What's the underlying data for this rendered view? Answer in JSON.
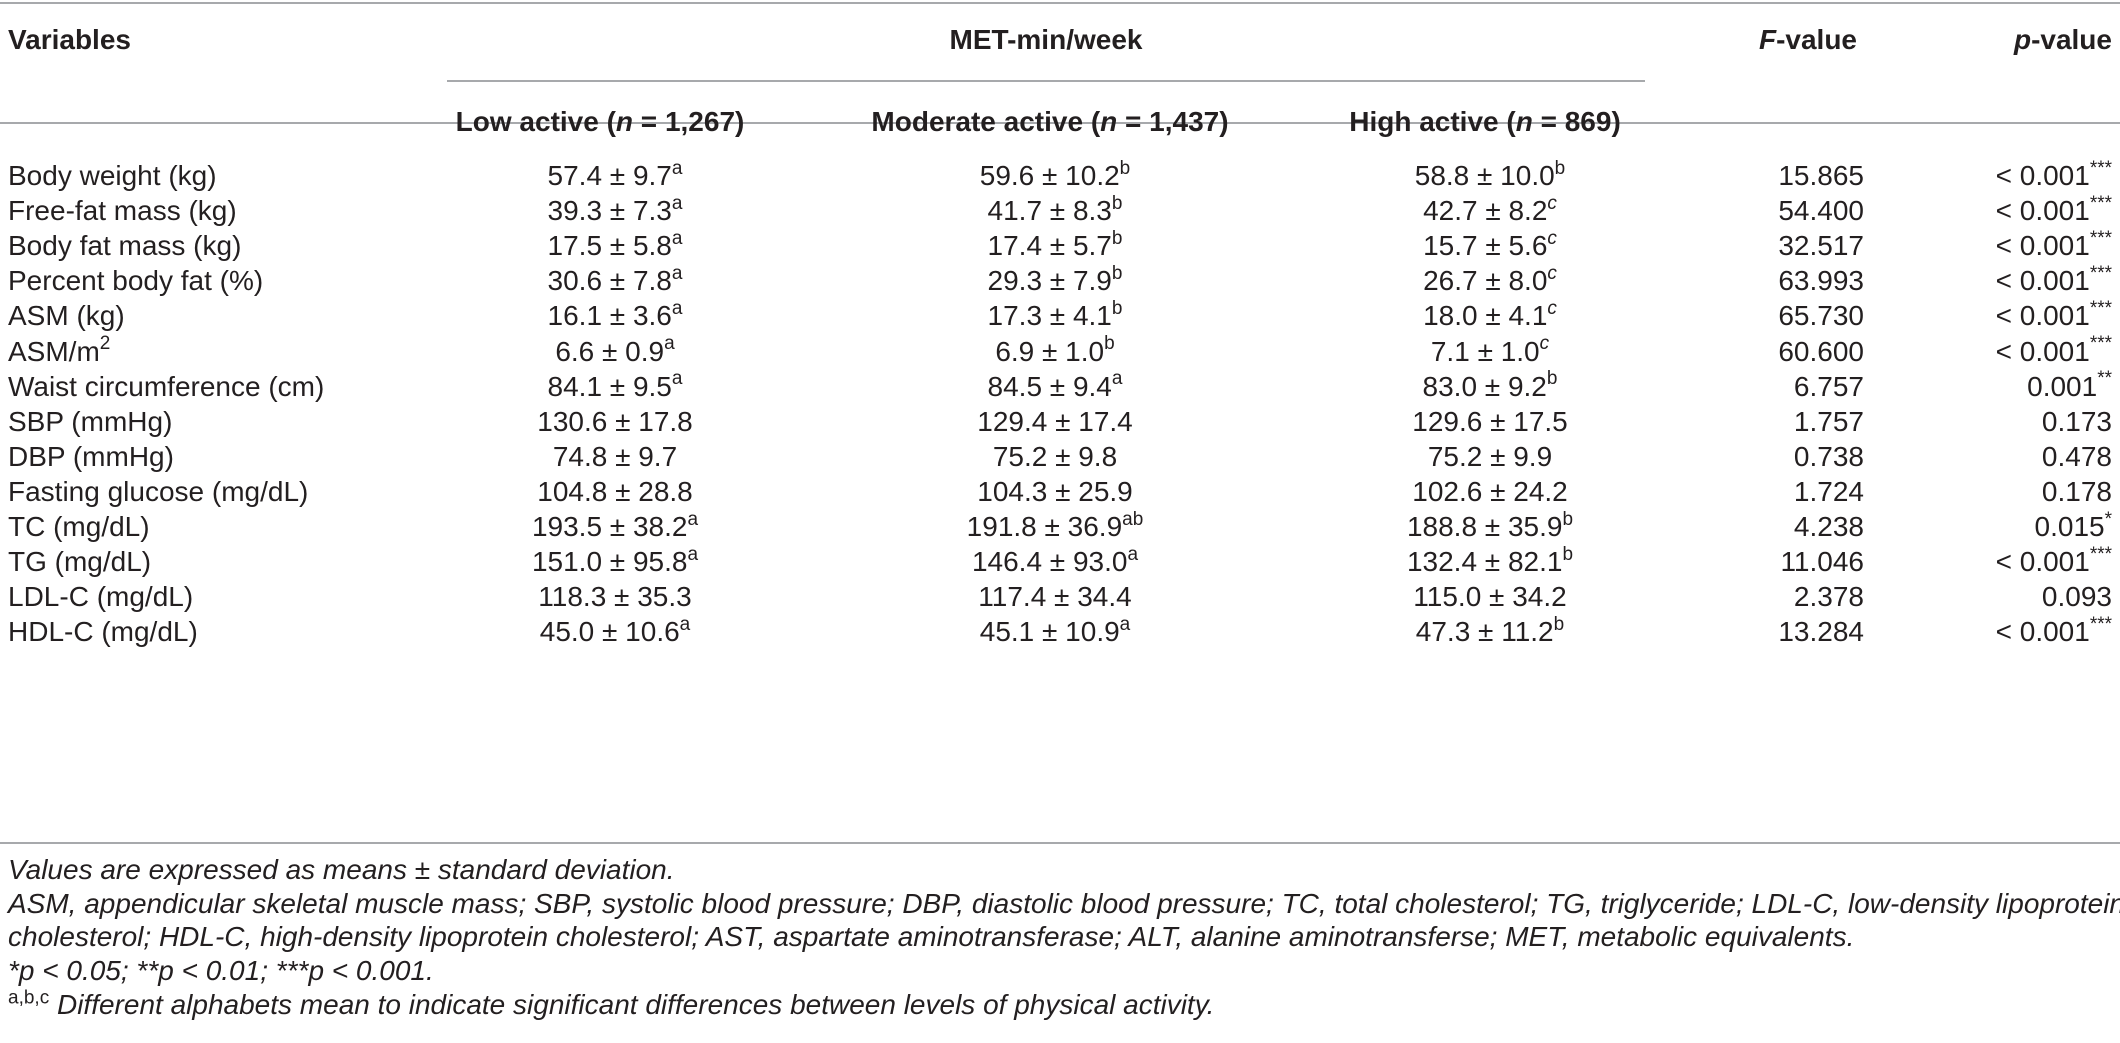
{
  "header": {
    "variables": "Variables",
    "met": "MET-min/week",
    "fvalue_italic": "F",
    "fvalue_rest": "-value",
    "pvalue_italic": "p",
    "pvalue_rest": "-value",
    "groups": [
      {
        "label": "Low active (",
        "n_italic": "n",
        "n_rest": " = 1,267)"
      },
      {
        "label": "Moderate active (",
        "n_italic": "n",
        "n_rest": " = 1,437)"
      },
      {
        "label": "High active (",
        "n_italic": "n",
        "n_rest": " = 869)"
      }
    ]
  },
  "rows": [
    {
      "var": "Body weight (kg)",
      "var_sup": "",
      "low": "57.4 ± 9.7",
      "low_sup": "a",
      "mod": "59.6 ± 10.2",
      "mod_sup": "b",
      "high": "58.8 ± 10.0",
      "high_sup": "b",
      "f": "15.865",
      "p": "<  0.001",
      "p_sup": "***"
    },
    {
      "var": "Free-fat mass (kg)",
      "var_sup": "",
      "low": "39.3 ± 7.3",
      "low_sup": "a",
      "mod": "41.7 ± 8.3",
      "mod_sup": "b",
      "high": "42.7 ± 8.2",
      "high_sup": "c",
      "f": "54.400",
      "p": "< 0.001",
      "p_sup": "***"
    },
    {
      "var": "Body fat mass (kg)",
      "var_sup": "",
      "low": "17.5 ± 5.8",
      "low_sup": "a",
      "mod": "17.4 ± 5.7",
      "mod_sup": "b",
      "high": "15.7 ± 5.6",
      "high_sup": "c",
      "f": "32.517",
      "p": "< 0.001",
      "p_sup": "***"
    },
    {
      "var": "Percent body fat (%)",
      "var_sup": "",
      "low": "30.6 ± 7.8",
      "low_sup": "a",
      "mod": "29.3 ± 7.9",
      "mod_sup": "b",
      "high": "26.7 ± 8.0",
      "high_sup": "c",
      "f": "63.993",
      "p": "< 0.001",
      "p_sup": "***"
    },
    {
      "var": "ASM (kg)",
      "var_sup": "",
      "low": "16.1 ± 3.6",
      "low_sup": "a",
      "mod": "17.3 ± 4.1",
      "mod_sup": "b",
      "high": "18.0 ± 4.1",
      "high_sup": "c",
      "f": "65.730",
      "p": "< 0.001",
      "p_sup": "***"
    },
    {
      "var": "ASM/m",
      "var_sup": "2",
      "low": "6.6 ± 0.9",
      "low_sup": "a",
      "mod": "6.9 ± 1.0",
      "mod_sup": "b",
      "high": "7.1 ± 1.0",
      "high_sup": "c",
      "f": "60.600",
      "p": "< 0.001",
      "p_sup": "***"
    },
    {
      "var": "Waist circumference (cm)",
      "var_sup": "",
      "low": "84.1 ± 9.5",
      "low_sup": "a",
      "mod": "84.5 ± 9.4",
      "mod_sup": "a",
      "high": "83.0 ± 9.2",
      "high_sup": "b",
      "f": "6.757",
      "p": "0.001",
      "p_sup": "**"
    },
    {
      "var": "SBP (mmHg)",
      "var_sup": "",
      "low": "130.6 ± 17.8",
      "low_sup": "",
      "mod": "129.4 ± 17.4",
      "mod_sup": "",
      "high": "129.6 ± 17.5",
      "high_sup": "",
      "f": "1.757",
      "p": "0.173",
      "p_sup": ""
    },
    {
      "var": "DBP (mmHg)",
      "var_sup": "",
      "low": "74.8 ± 9.7",
      "low_sup": "",
      "mod": "75.2 ± 9.8",
      "mod_sup": "",
      "high": "75.2 ± 9.9",
      "high_sup": "",
      "f": "0.738",
      "p": "0.478",
      "p_sup": ""
    },
    {
      "var": "Fasting glucose (mg/dL)",
      "var_sup": "",
      "low": "104.8 ± 28.8",
      "low_sup": "",
      "mod": "104.3 ± 25.9",
      "mod_sup": "",
      "high": "102.6 ± 24.2",
      "high_sup": "",
      "f": "1.724",
      "p": "0.178",
      "p_sup": ""
    },
    {
      "var": "TC (mg/dL)",
      "var_sup": "",
      "low": "193.5 ± 38.2",
      "low_sup": "a",
      "mod": "191.8 ± 36.9",
      "mod_sup": "ab",
      "high": "188.8 ± 35.9",
      "high_sup": "b",
      "f": "4.238",
      "p": "0.015",
      "p_sup": "*"
    },
    {
      "var": "TG (mg/dL)",
      "var_sup": "",
      "low": "151.0 ± 95.8",
      "low_sup": "a",
      "mod": "146.4 ± 93.0",
      "mod_sup": "a",
      "high": "132.4 ± 82.1",
      "high_sup": "b",
      "f": "11.046",
      "p": "< 0.001",
      "p_sup": "***"
    },
    {
      "var": "LDL-C (mg/dL)",
      "var_sup": "",
      "low": "118.3 ± 35.3",
      "low_sup": "",
      "mod": "117.4 ± 34.4",
      "mod_sup": "",
      "high": "115.0 ± 34.2",
      "high_sup": "",
      "f": "2.378",
      "p": "0.093",
      "p_sup": ""
    },
    {
      "var": "HDL-C (mg/dL)",
      "var_sup": "",
      "low": "45.0 ± 10.6",
      "low_sup": "a",
      "mod": "45.1 ± 10.9",
      "mod_sup": "a",
      "high": "47.3 ± 11.2",
      "high_sup": "b",
      "f": "13.284",
      "p": "< 0.001",
      "p_sup": "***"
    }
  ],
  "footnotes": {
    "line1": "Values are expressed as means ± standard deviation.",
    "line2": "ASM, appendicular skeletal muscle mass; SBP, systolic blood pressure; DBP, diastolic blood pressure; TC, total cholesterol; TG, triglyceride; LDL-C, low-density lipoprotein",
    "line3": "cholesterol; HDL-C, high-density lipoprotein cholesterol; AST, aspartate aminotransferase; ALT, alanine aminotransferse; MET, metabolic equivalents.",
    "line4": "*p < 0.05; **p < 0.01; ***p < 0.001.",
    "line5_sup": "a,b,c",
    "line5": " Different alphabets mean to indicate significant differences between levels of physical activity."
  }
}
